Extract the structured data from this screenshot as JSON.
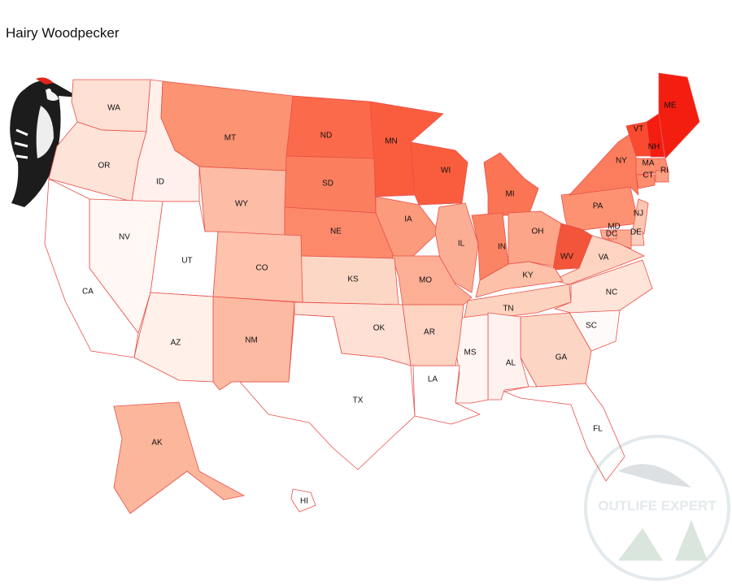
{
  "title": "Hairy Woodpecker",
  "watermark": "OUTLIFE EXPERT",
  "states": [
    {
      "abbr": "WA",
      "color": "#fedfd3"
    },
    {
      "abbr": "OR",
      "color": "#fee3d8"
    },
    {
      "abbr": "ID",
      "color": "#fff0eb"
    },
    {
      "abbr": "MT",
      "color": "#fc9373"
    },
    {
      "abbr": "WY",
      "color": "#fcbca5"
    },
    {
      "abbr": "ND",
      "color": "#fb6a4a"
    },
    {
      "abbr": "SD",
      "color": "#fb7f5f"
    },
    {
      "abbr": "NE",
      "color": "#fc8a6a"
    },
    {
      "abbr": "MN",
      "color": "#fa5d3e"
    },
    {
      "abbr": "WI",
      "color": "#fa5d3e"
    },
    {
      "abbr": "IA",
      "color": "#fc9a7c"
    },
    {
      "abbr": "IL",
      "color": "#fcae94"
    },
    {
      "abbr": "MI",
      "color": "#fb7454"
    },
    {
      "abbr": "IN",
      "color": "#fb8464"
    },
    {
      "abbr": "OH",
      "color": "#fca589"
    },
    {
      "abbr": "PA",
      "color": "#fc9272"
    },
    {
      "abbr": "NY",
      "color": "#fb7d5d"
    },
    {
      "abbr": "VT",
      "color": "#f94a2f"
    },
    {
      "abbr": "NH",
      "color": "#f31d10"
    },
    {
      "abbr": "ME",
      "color": "#f31d10"
    },
    {
      "abbr": "MA",
      "color": "#fc8d6d"
    },
    {
      "abbr": "CT",
      "color": "#fc8d6d"
    },
    {
      "abbr": "RI",
      "color": "#fca082"
    },
    {
      "abbr": "NJ",
      "color": "#fdc6b0"
    },
    {
      "abbr": "DE",
      "color": "#fdd0bd"
    },
    {
      "abbr": "MD",
      "color": "#fcaa8f"
    },
    {
      "abbr": "DC",
      "color": "#fcb49b"
    },
    {
      "abbr": "WV",
      "color": "#f2553a"
    },
    {
      "abbr": "VA",
      "color": "#fdd3c1"
    },
    {
      "abbr": "KY",
      "color": "#fdc1a9"
    },
    {
      "abbr": "TN",
      "color": "#fdd2bf"
    },
    {
      "abbr": "NC",
      "color": "#fee4d9"
    },
    {
      "abbr": "SC",
      "color": "#fffafa"
    },
    {
      "abbr": "GA",
      "color": "#fdd5c4"
    },
    {
      "abbr": "AL",
      "color": "#fff2ee"
    },
    {
      "abbr": "MS",
      "color": "#fff5f2"
    },
    {
      "abbr": "LA",
      "color": "#ffffff"
    },
    {
      "abbr": "AR",
      "color": "#fdd3c2"
    },
    {
      "abbr": "MO",
      "color": "#fcaf95"
    },
    {
      "abbr": "KS",
      "color": "#fdd7c6"
    },
    {
      "abbr": "OK",
      "color": "#fee0d4"
    },
    {
      "abbr": "TX",
      "color": "#ffffff"
    },
    {
      "abbr": "NM",
      "color": "#fcbaa2"
    },
    {
      "abbr": "CO",
      "color": "#fdc3ac"
    },
    {
      "abbr": "UT",
      "color": "#ffffff"
    },
    {
      "abbr": "NV",
      "color": "#fff7f4"
    },
    {
      "abbr": "AZ",
      "color": "#fff0ea"
    },
    {
      "abbr": "CA",
      "color": "#ffffff"
    },
    {
      "abbr": "FL",
      "color": "#ffffff"
    },
    {
      "abbr": "AK",
      "color": "#fcb69c"
    },
    {
      "abbr": "HI",
      "color": "#ffffff"
    }
  ]
}
